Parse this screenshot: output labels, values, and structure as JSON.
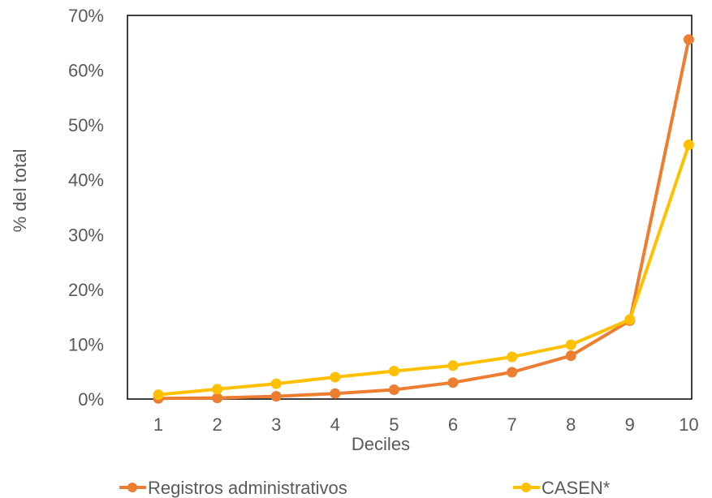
{
  "chart_data": {
    "type": "line",
    "title": "",
    "xlabel": "Deciles",
    "ylabel": "% del total",
    "x": [
      1,
      2,
      3,
      4,
      5,
      6,
      7,
      8,
      9,
      10
    ],
    "ylim": [
      0,
      70
    ],
    "yticks": [
      0,
      10,
      20,
      30,
      40,
      50,
      60,
      70
    ],
    "ytick_labels": [
      "0%",
      "10%",
      "20%",
      "30%",
      "40%",
      "50%",
      "60%",
      "70%"
    ],
    "series": [
      {
        "name": "Registros administrativos",
        "color": "#ED7D31",
        "values": [
          0.1,
          0.2,
          0.5,
          1.0,
          1.7,
          3.0,
          4.9,
          7.9,
          14.3,
          65.6
        ]
      },
      {
        "name": "CASEN*",
        "color": "#FFC000",
        "values": [
          0.8,
          1.8,
          2.8,
          4.0,
          5.1,
          6.1,
          7.7,
          9.9,
          14.5,
          46.4
        ]
      }
    ],
    "grid": false,
    "legend_position": "bottom"
  }
}
